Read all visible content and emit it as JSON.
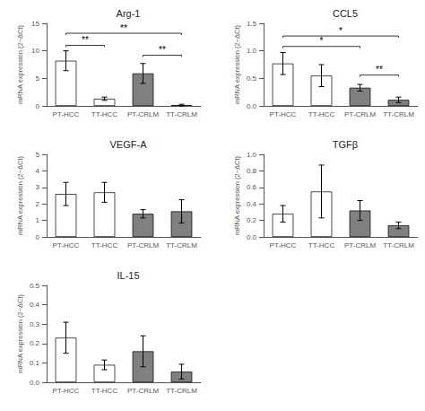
{
  "chart_data": [
    {
      "type": "bar",
      "title": "Arg-1",
      "categories": [
        "PT-HCC",
        "TT-HCC",
        "PT-CRLM",
        "TT-CRLM"
      ],
      "values": [
        8.2,
        1.3,
        5.9,
        0.15
      ],
      "errors": [
        1.8,
        0.3,
        1.8,
        0.15
      ],
      "colors": [
        "white",
        "white",
        "#808080",
        "#808080"
      ],
      "ylim": [
        0,
        15
      ],
      "yticks": [
        0,
        5,
        10,
        15
      ],
      "ylabel": "mRNA expression (2−ΔCt)",
      "grid": false,
      "annotations": [
        {
          "from": "PT-HCC",
          "to": "TT-HCC",
          "y": 11.0,
          "label": "**"
        },
        {
          "from": "PT-HCC",
          "to": "TT-CRLM",
          "y": 13.2,
          "label": "**"
        },
        {
          "from": "PT-CRLM",
          "to": "TT-CRLM",
          "y": 9.2,
          "label": "**"
        }
      ]
    },
    {
      "type": "bar",
      "title": "CCL5",
      "categories": [
        "PT-HCC",
        "TT-HCC",
        "PT-CRLM",
        "TT-CRLM"
      ],
      "values": [
        0.77,
        0.55,
        0.33,
        0.11
      ],
      "errors": [
        0.2,
        0.2,
        0.06,
        0.05
      ],
      "colors": [
        "white",
        "white",
        "#808080",
        "#808080"
      ],
      "ylim": [
        0,
        1.5
      ],
      "yticks": [
        {
          "value": 0,
          "label": "0.0"
        },
        0.5,
        {
          "value": 1,
          "label": "1.0"
        },
        1.5
      ],
      "ylabel": "mRNA expression (2−ΔCt)",
      "grid": false,
      "annotations": [
        {
          "from": "PT-HCC",
          "to": "PT-CRLM",
          "y": 1.08,
          "label": "*"
        },
        {
          "from": "PT-HCC",
          "to": "TT-CRLM",
          "y": 1.27,
          "label": "*"
        },
        {
          "from": "PT-CRLM",
          "to": "TT-CRLM",
          "y": 0.56,
          "label": "**"
        }
      ]
    },
    {
      "type": "bar",
      "title": "VEGF-A",
      "categories": [
        "PT-HCC",
        "TT-HCC",
        "PT-CRLM",
        "TT-CRLM"
      ],
      "values": [
        2.6,
        2.7,
        1.4,
        1.55
      ],
      "errors": [
        0.7,
        0.6,
        0.25,
        0.7
      ],
      "colors": [
        "white",
        "white",
        "#808080",
        "#808080"
      ],
      "ylim": [
        0,
        5
      ],
      "yticks": [
        0,
        1,
        2,
        3,
        4,
        5
      ],
      "ylabel": "mRNA expression (2−ΔCt)",
      "grid": false
    },
    {
      "type": "bar",
      "title": "TGFβ",
      "categories": [
        "PT-HCC",
        "TT-HCC",
        "PT-CRLM",
        "TT-CRLM"
      ],
      "values": [
        0.28,
        0.55,
        0.32,
        0.14
      ],
      "errors": [
        0.1,
        0.32,
        0.12,
        0.04
      ],
      "colors": [
        "white",
        "white",
        "#808080",
        "#808080"
      ],
      "ylim": [
        0,
        1.0
      ],
      "yticks": [
        {
          "value": 0,
          "label": "0.0"
        },
        0.2,
        0.4,
        0.6,
        0.8,
        {
          "value": 1,
          "label": "1.0"
        }
      ],
      "ylabel": "mRNA expression (2−ΔCt)",
      "grid": false
    },
    {
      "type": "bar",
      "title": "IL-15",
      "categories": [
        "PT-HCC",
        "TT-HCC",
        "PT-CRLM",
        "TT-CRLM"
      ],
      "values": [
        0.23,
        0.09,
        0.16,
        0.055
      ],
      "errors": [
        0.08,
        0.025,
        0.08,
        0.038
      ],
      "colors": [
        "white",
        "white",
        "#808080",
        "#808080"
      ],
      "ylim": [
        0,
        0.5
      ],
      "yticks": [
        {
          "value": 0,
          "label": "0.0"
        },
        0.1,
        0.2,
        0.3,
        0.4,
        0.5
      ],
      "ylabel": "mRNA expression (2−ΔCt)",
      "grid": false
    }
  ]
}
